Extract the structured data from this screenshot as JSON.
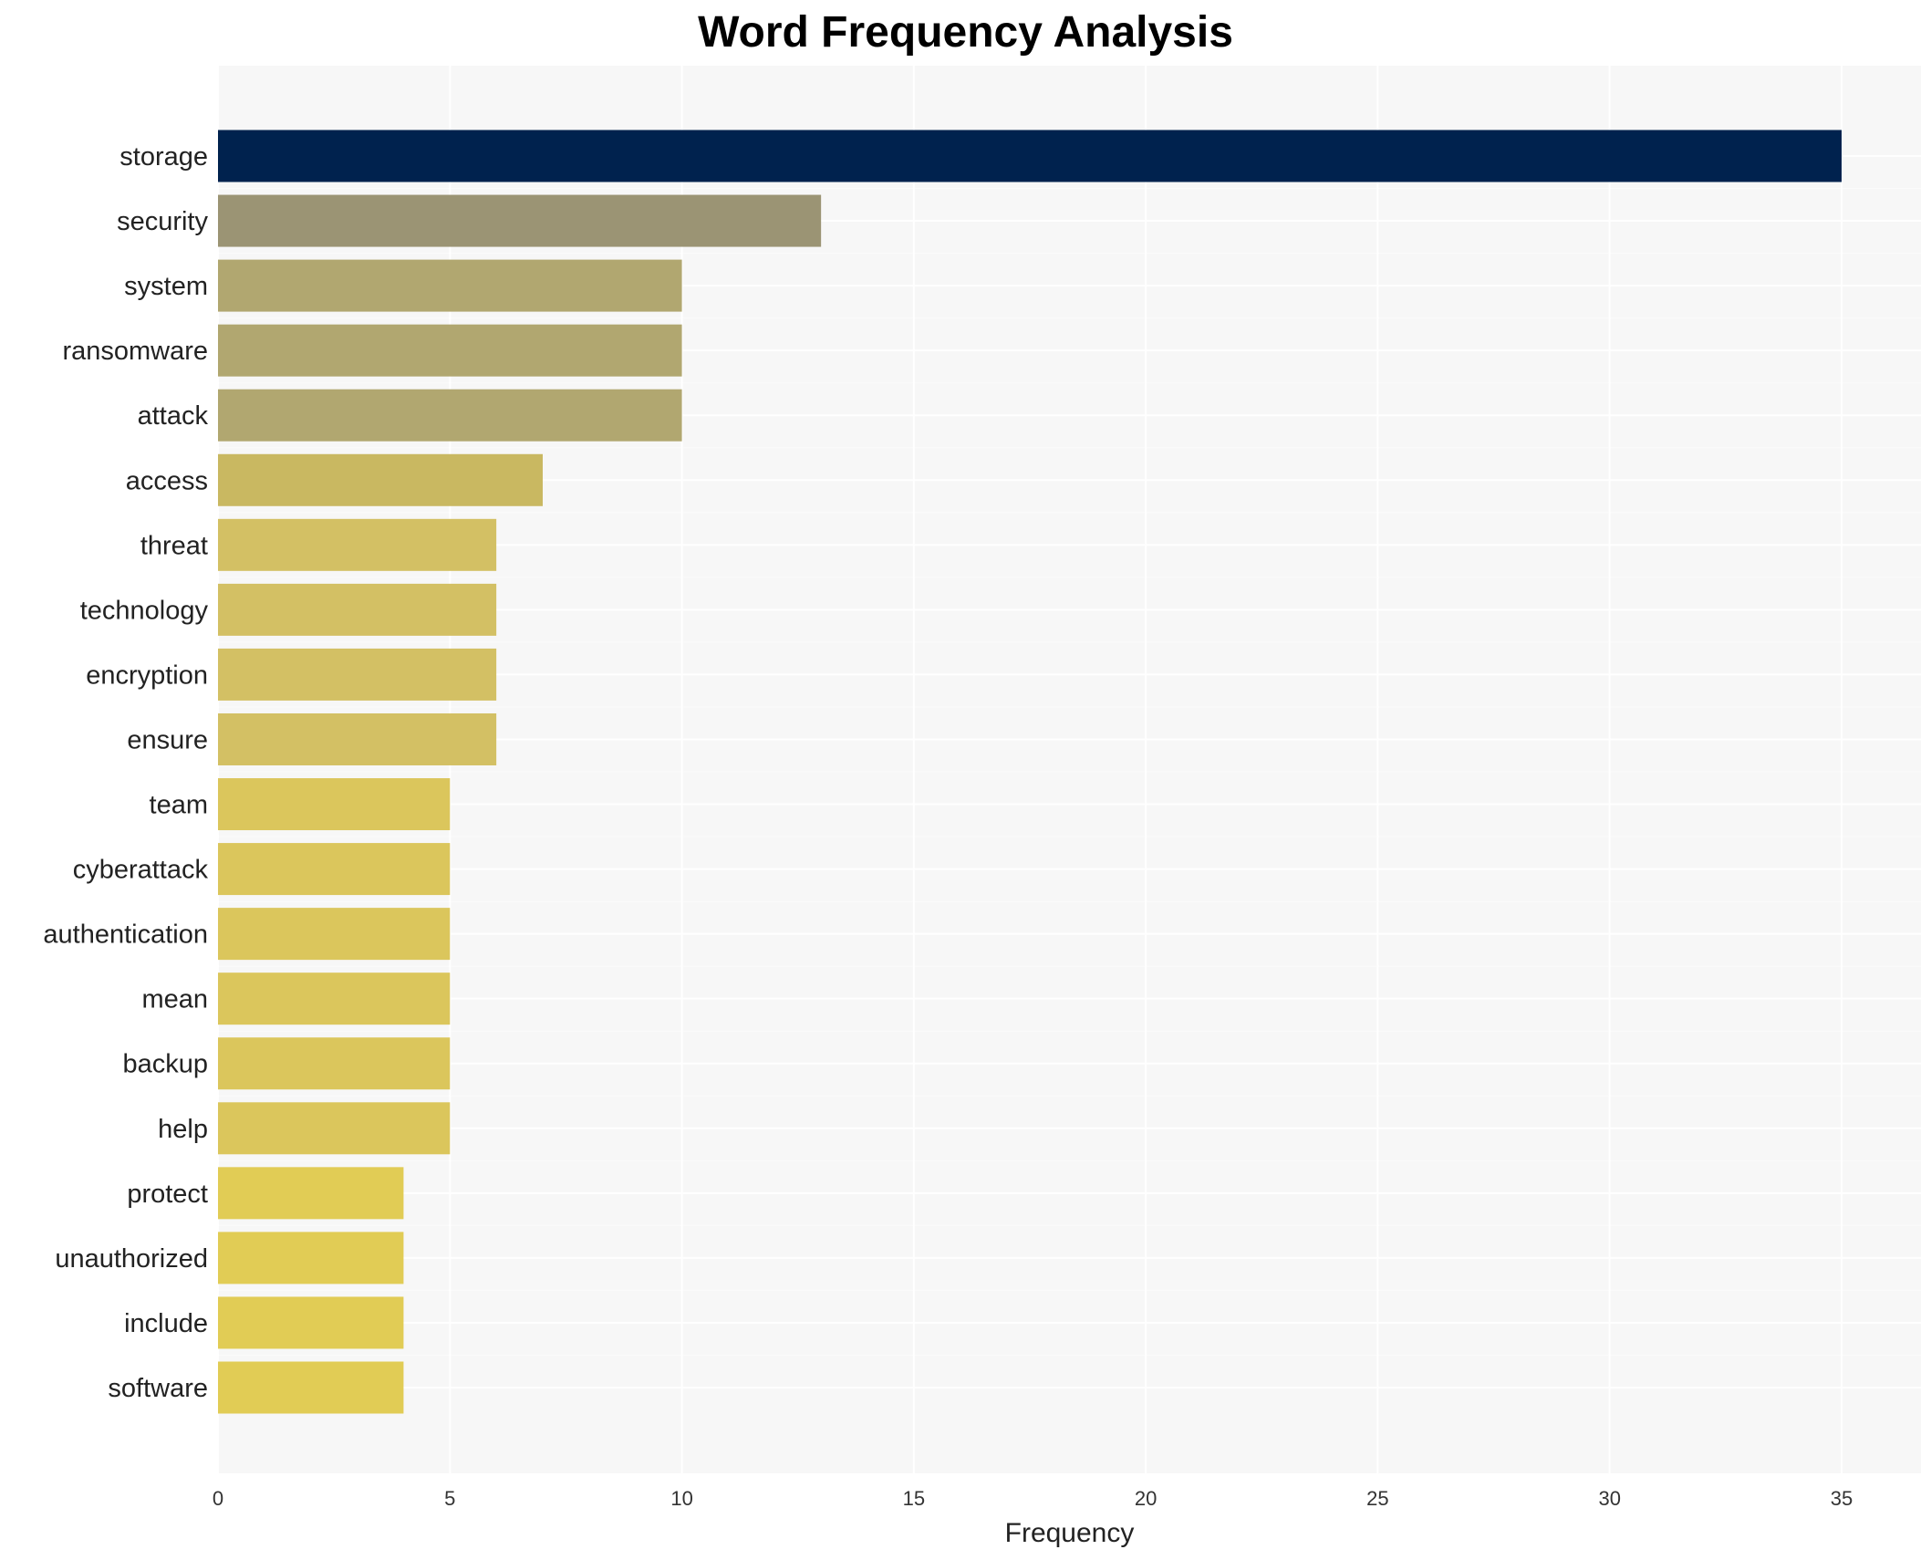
{
  "chart_data": {
    "type": "bar",
    "orientation": "horizontal",
    "title": "Word Frequency Analysis",
    "xlabel": "Frequency",
    "ylabel": "",
    "xlim": [
      0,
      36.8
    ],
    "xticks": [
      0,
      5,
      10,
      15,
      20,
      25,
      30,
      35
    ],
    "grid": true,
    "categories": [
      "storage",
      "security",
      "system",
      "ransomware",
      "attack",
      "access",
      "threat",
      "technology",
      "encryption",
      "ensure",
      "team",
      "cyberattack",
      "authentication",
      "mean",
      "backup",
      "help",
      "protect",
      "unauthorized",
      "include",
      "software"
    ],
    "values": [
      35,
      13,
      10,
      10,
      10,
      7,
      6,
      6,
      6,
      6,
      5,
      5,
      5,
      5,
      5,
      5,
      4,
      4,
      4,
      4
    ],
    "colors": [
      "#00224e",
      "#9b9474",
      "#b1a770",
      "#b1a770",
      "#b1a770",
      "#c9b861",
      "#d3c064",
      "#d3c064",
      "#d3c064",
      "#d3c064",
      "#dbc65c",
      "#dbc65c",
      "#dbc65c",
      "#dbc65c",
      "#dbc65c",
      "#dbc65c",
      "#e1cc55",
      "#e1cc55",
      "#e1cc55",
      "#e1cc55"
    ],
    "background": "#f7f7f7"
  }
}
